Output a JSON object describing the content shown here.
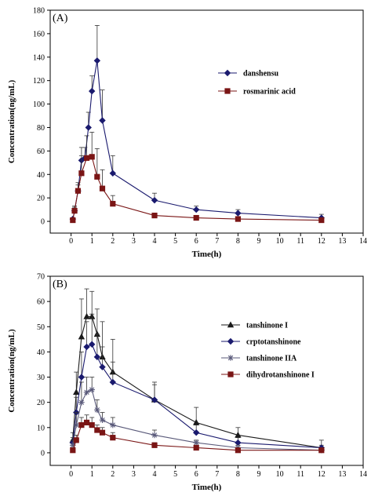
{
  "chart_data": [
    {
      "type": "line",
      "panel_label": "(A)",
      "xlabel": "Time(h)",
      "ylabel": "Concentration(ng/mL)",
      "xlim": [
        -1,
        14
      ],
      "ylim": [
        -10,
        180
      ],
      "xticks": [
        0,
        1,
        2,
        3,
        4,
        5,
        6,
        7,
        8,
        9,
        10,
        11,
        12,
        13,
        14
      ],
      "yticks": [
        0,
        20,
        40,
        60,
        80,
        100,
        120,
        140,
        160,
        180
      ],
      "legend_position": "top-right",
      "series": [
        {
          "name": "danshensu",
          "marker": "diamond",
          "color": "#1a1a6e",
          "x": [
            0.083,
            0.167,
            0.333,
            0.5,
            0.667,
            0.833,
            1,
            1.25,
            1.5,
            2,
            4,
            6,
            8,
            12
          ],
          "y": [
            2,
            9,
            26,
            52,
            54,
            80,
            111,
            137,
            86,
            41,
            18,
            10,
            7,
            3
          ],
          "err": [
            1,
            3,
            5,
            11,
            9,
            13,
            13,
            30,
            26,
            15,
            6,
            3,
            3,
            3
          ]
        },
        {
          "name": "rosmarinic acid",
          "marker": "square",
          "color": "#7a1515",
          "x": [
            0.083,
            0.167,
            0.333,
            0.5,
            0.75,
            1,
            1.25,
            1.5,
            2,
            4,
            6,
            8,
            12
          ],
          "y": [
            1,
            9,
            26,
            41,
            54,
            55,
            38,
            28,
            15,
            5,
            3,
            2,
            1
          ],
          "err": [
            1,
            4,
            7,
            15,
            19,
            21,
            24,
            16,
            7,
            2,
            1,
            1,
            1
          ]
        }
      ]
    },
    {
      "type": "line",
      "panel_label": "(B)",
      "xlabel": "Time(h)",
      "ylabel": "Concentration(ng/mL)",
      "xlim": [
        -1,
        14
      ],
      "ylim": [
        -5,
        70
      ],
      "xticks": [
        0,
        1,
        2,
        3,
        4,
        5,
        6,
        7,
        8,
        9,
        10,
        11,
        12,
        13,
        14
      ],
      "yticks": [
        0,
        10,
        20,
        30,
        40,
        50,
        60,
        70
      ],
      "legend_position": "top-right",
      "series": [
        {
          "name": "tanshinone I",
          "marker": "triangle",
          "color": "#1a1a1a",
          "x": [
            0.083,
            0.25,
            0.5,
            0.75,
            1,
            1.25,
            1.5,
            2,
            4,
            6,
            8,
            12
          ],
          "y": [
            5,
            24,
            46,
            54,
            54,
            47,
            38,
            32,
            21,
            12,
            7,
            2
          ],
          "err": [
            3,
            8,
            15,
            11,
            10,
            10,
            14,
            13,
            7,
            6,
            3,
            3
          ]
        },
        {
          "name": "crptotanshinone",
          "marker": "diamond",
          "color": "#1a1a6e",
          "x": [
            0.083,
            0.25,
            0.5,
            0.75,
            1,
            1.25,
            1.5,
            2,
            4,
            6,
            8,
            12
          ],
          "y": [
            4,
            16,
            30,
            42,
            43,
            38,
            34,
            28,
            21,
            8,
            4,
            2
          ],
          "err": [
            2,
            6,
            10,
            10,
            12,
            9,
            8,
            8,
            6,
            3,
            2,
            1
          ]
        },
        {
          "name": "tanshinone IIA",
          "marker": "star",
          "color": "#5a5a7a",
          "x": [
            0.083,
            0.25,
            0.5,
            0.75,
            1,
            1.25,
            1.5,
            2,
            4,
            6,
            8,
            12
          ],
          "y": [
            3,
            11,
            20,
            24,
            25,
            17,
            13,
            11,
            7,
            4,
            2,
            1
          ],
          "err": [
            2,
            5,
            8,
            6,
            5,
            4,
            3,
            3,
            2,
            1,
            1,
            1
          ]
        },
        {
          "name": "dihydrotanshinone I",
          "marker": "square",
          "color": "#7a1515",
          "x": [
            0.083,
            0.25,
            0.5,
            0.75,
            1,
            1.25,
            1.5,
            2,
            4,
            6,
            8,
            12
          ],
          "y": [
            1,
            5,
            11,
            12,
            11,
            9,
            8,
            6,
            3,
            2,
            1,
            1
          ],
          "err": [
            1,
            2,
            3,
            3,
            3,
            2,
            2,
            2,
            1,
            1,
            1,
            1
          ]
        }
      ]
    }
  ]
}
